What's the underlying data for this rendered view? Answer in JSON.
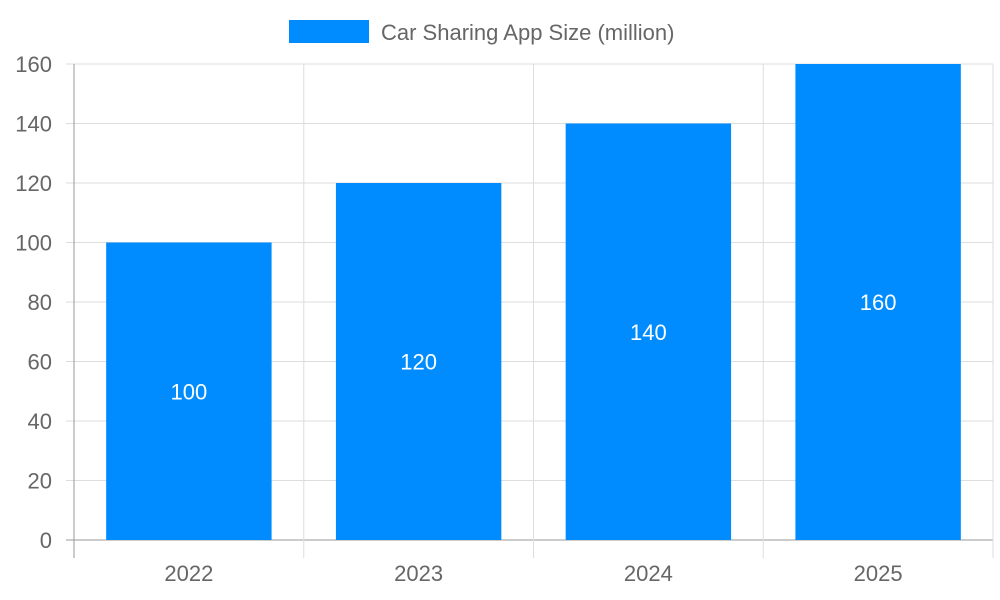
{
  "chart_data": {
    "type": "bar",
    "categories": [
      "2022",
      "2023",
      "2024",
      "2025"
    ],
    "series": [
      {
        "name": "Car Sharing App Size (million)",
        "values": [
          100,
          120,
          140,
          160
        ],
        "color": "#008cff"
      }
    ],
    "data_labels": [
      "100",
      "120",
      "140",
      "160"
    ],
    "yticks": [
      "0",
      "20",
      "40",
      "60",
      "80",
      "100",
      "120",
      "140",
      "160"
    ],
    "ylim": [
      0,
      160
    ],
    "xlabel": "",
    "ylabel": "",
    "title": "",
    "grid": true,
    "legend_position": "top"
  }
}
